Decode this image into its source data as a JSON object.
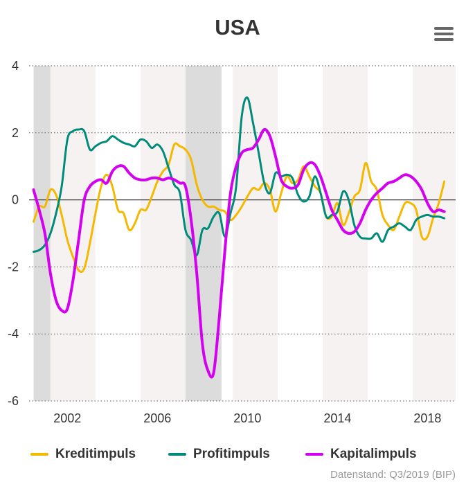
{
  "chart_data": {
    "type": "line",
    "title": "USA",
    "xlabel": "",
    "ylabel": "",
    "xlim": [
      2000.3,
      2019.25
    ],
    "ylim": [
      -6,
      4
    ],
    "y_ticks": [
      4,
      2,
      0,
      -2,
      -4,
      -6
    ],
    "x_ticks": [
      2002,
      2006,
      2010,
      2014,
      2018
    ],
    "grid": "horizontal dotted",
    "legend_position": "bottom",
    "bands": [
      {
        "from": 2000.5,
        "to": 2001.25,
        "color": "#dcdcdc"
      },
      {
        "from": 2001.25,
        "to": 2003.25,
        "color": "#f7f2f2"
      },
      {
        "from": 2005.25,
        "to": 2007.25,
        "color": "#f7f2f2"
      },
      {
        "from": 2007.25,
        "to": 2008.85,
        "color": "#dcdcdc"
      },
      {
        "from": 2009.35,
        "to": 2011.35,
        "color": "#f7f2f2"
      },
      {
        "from": 2013.35,
        "to": 2015.35,
        "color": "#f7f2f2"
      },
      {
        "from": 2017.35,
        "to": 2019.25,
        "color": "#f7f2f2"
      }
    ],
    "series": [
      {
        "name": "Kreditimpuls",
        "color": "#f5b800",
        "points": [
          [
            2000.5,
            -0.65
          ],
          [
            2000.75,
            -0.2
          ],
          [
            2001.0,
            -0.2
          ],
          [
            2001.25,
            0.3
          ],
          [
            2001.5,
            0.15
          ],
          [
            2001.75,
            -0.45
          ],
          [
            2002.0,
            -1.2
          ],
          [
            2002.25,
            -1.7
          ],
          [
            2002.5,
            -2.1
          ],
          [
            2002.75,
            -2.05
          ],
          [
            2003.0,
            -1.3
          ],
          [
            2003.25,
            -0.4
          ],
          [
            2003.5,
            0.4
          ],
          [
            2003.75,
            0.75
          ],
          [
            2004.0,
            0.4
          ],
          [
            2004.25,
            -0.3
          ],
          [
            2004.5,
            -0.4
          ],
          [
            2004.75,
            -0.9
          ],
          [
            2005.0,
            -0.7
          ],
          [
            2005.25,
            -0.3
          ],
          [
            2005.5,
            -0.3
          ],
          [
            2005.75,
            0.1
          ],
          [
            2006.0,
            0.55
          ],
          [
            2006.25,
            0.85
          ],
          [
            2006.5,
            1.05
          ],
          [
            2006.75,
            1.65
          ],
          [
            2007.0,
            1.6
          ],
          [
            2007.25,
            1.5
          ],
          [
            2007.5,
            1.2
          ],
          [
            2007.75,
            0.45
          ],
          [
            2008.0,
            0.0
          ],
          [
            2008.25,
            -0.2
          ],
          [
            2008.5,
            -0.2
          ],
          [
            2008.75,
            -0.3
          ],
          [
            2009.0,
            -0.35
          ],
          [
            2009.25,
            -0.6
          ],
          [
            2009.5,
            -0.45
          ],
          [
            2009.75,
            -0.2
          ],
          [
            2010.0,
            0.1
          ],
          [
            2010.25,
            0.35
          ],
          [
            2010.5,
            0.3
          ],
          [
            2010.75,
            0.5
          ],
          [
            2011.0,
            0.3
          ],
          [
            2011.25,
            -0.35
          ],
          [
            2011.5,
            0.2
          ],
          [
            2011.75,
            0.7
          ],
          [
            2012.0,
            0.5
          ],
          [
            2012.25,
            0.6
          ],
          [
            2012.5,
            1.0
          ],
          [
            2012.75,
            0.7
          ],
          [
            2013.0,
            0.4
          ],
          [
            2013.25,
            0.2
          ],
          [
            2013.5,
            -0.5
          ],
          [
            2013.75,
            -0.5
          ],
          [
            2014.0,
            -0.1
          ],
          [
            2014.25,
            -0.75
          ],
          [
            2014.5,
            -0.4
          ],
          [
            2014.75,
            0.1
          ],
          [
            2015.0,
            0.3
          ],
          [
            2015.25,
            1.1
          ],
          [
            2015.5,
            0.55
          ],
          [
            2015.75,
            0.3
          ],
          [
            2016.0,
            -0.45
          ],
          [
            2016.25,
            -0.75
          ],
          [
            2016.5,
            -0.9
          ],
          [
            2016.75,
            -0.5
          ],
          [
            2017.0,
            -0.1
          ],
          [
            2017.25,
            -0.1
          ],
          [
            2017.5,
            -0.3
          ],
          [
            2017.75,
            -1.1
          ],
          [
            2018.0,
            -1.1
          ],
          [
            2018.25,
            -0.55
          ],
          [
            2018.5,
            -0.1
          ],
          [
            2018.75,
            0.55
          ]
        ]
      },
      {
        "name": "Profitimpuls",
        "color": "#008a7a",
        "points": [
          [
            2000.5,
            -1.55
          ],
          [
            2000.75,
            -1.5
          ],
          [
            2001.0,
            -1.35
          ],
          [
            2001.25,
            -1.0
          ],
          [
            2001.5,
            -0.4
          ],
          [
            2001.75,
            0.4
          ],
          [
            2002.0,
            1.8
          ],
          [
            2002.25,
            2.05
          ],
          [
            2002.5,
            2.1
          ],
          [
            2002.75,
            2.05
          ],
          [
            2003.0,
            1.5
          ],
          [
            2003.25,
            1.6
          ],
          [
            2003.5,
            1.7
          ],
          [
            2003.75,
            1.75
          ],
          [
            2004.0,
            1.9
          ],
          [
            2004.25,
            1.8
          ],
          [
            2004.5,
            1.7
          ],
          [
            2004.75,
            1.65
          ],
          [
            2005.0,
            1.6
          ],
          [
            2005.25,
            1.8
          ],
          [
            2005.5,
            1.75
          ],
          [
            2005.75,
            1.55
          ],
          [
            2006.0,
            1.65
          ],
          [
            2006.25,
            1.45
          ],
          [
            2006.5,
            0.95
          ],
          [
            2006.75,
            0.45
          ],
          [
            2007.0,
            0.2
          ],
          [
            2007.25,
            -0.9
          ],
          [
            2007.5,
            -1.2
          ],
          [
            2007.75,
            -1.65
          ],
          [
            2008.0,
            -0.9
          ],
          [
            2008.25,
            -0.85
          ],
          [
            2008.5,
            -0.5
          ],
          [
            2008.75,
            -0.4
          ],
          [
            2009.0,
            -1.1
          ],
          [
            2009.25,
            -0.4
          ],
          [
            2009.5,
            0.4
          ],
          [
            2009.75,
            2.5
          ],
          [
            2010.0,
            3.05
          ],
          [
            2010.25,
            2.3
          ],
          [
            2010.5,
            1.4
          ],
          [
            2010.75,
            0.5
          ],
          [
            2011.0,
            0.2
          ],
          [
            2011.25,
            0.8
          ],
          [
            2011.5,
            0.7
          ],
          [
            2011.75,
            0.75
          ],
          [
            2012.0,
            0.65
          ],
          [
            2012.25,
            0.15
          ],
          [
            2012.5,
            -0.05
          ],
          [
            2012.75,
            0.1
          ],
          [
            2013.0,
            0.7
          ],
          [
            2013.25,
            0.2
          ],
          [
            2013.5,
            -0.5
          ],
          [
            2013.75,
            -0.45
          ],
          [
            2014.0,
            -0.35
          ],
          [
            2014.25,
            0.25
          ],
          [
            2014.5,
            0.0
          ],
          [
            2014.75,
            -0.75
          ],
          [
            2015.0,
            -1.1
          ],
          [
            2015.25,
            -1.15
          ],
          [
            2015.5,
            -1.15
          ],
          [
            2015.75,
            -1.0
          ],
          [
            2016.0,
            -1.25
          ],
          [
            2016.25,
            -0.9
          ],
          [
            2016.5,
            -0.8
          ],
          [
            2016.75,
            -0.7
          ],
          [
            2017.0,
            -0.8
          ],
          [
            2017.25,
            -0.9
          ],
          [
            2017.5,
            -0.6
          ],
          [
            2017.75,
            -0.5
          ],
          [
            2018.0,
            -0.45
          ],
          [
            2018.25,
            -0.5
          ],
          [
            2018.5,
            -0.5
          ],
          [
            2018.75,
            -0.55
          ]
        ]
      },
      {
        "name": "Kapitalimpuls",
        "color": "#d400f0",
        "points": [
          [
            2000.5,
            0.3
          ],
          [
            2000.75,
            -0.3
          ],
          [
            2001.0,
            -1.0
          ],
          [
            2001.25,
            -2.2
          ],
          [
            2001.5,
            -3.0
          ],
          [
            2001.75,
            -3.3
          ],
          [
            2002.0,
            -3.25
          ],
          [
            2002.25,
            -2.4
          ],
          [
            2002.5,
            -1.2
          ],
          [
            2002.75,
            0.0
          ],
          [
            2003.0,
            0.4
          ],
          [
            2003.25,
            0.55
          ],
          [
            2003.5,
            0.6
          ],
          [
            2003.75,
            0.5
          ],
          [
            2004.0,
            0.85
          ],
          [
            2004.25,
            1.0
          ],
          [
            2004.5,
            1.0
          ],
          [
            2004.75,
            0.8
          ],
          [
            2005.0,
            0.65
          ],
          [
            2005.25,
            0.6
          ],
          [
            2005.5,
            0.6
          ],
          [
            2005.75,
            0.65
          ],
          [
            2006.0,
            0.65
          ],
          [
            2006.25,
            0.6
          ],
          [
            2006.5,
            0.65
          ],
          [
            2006.75,
            0.6
          ],
          [
            2007.0,
            0.5
          ],
          [
            2007.25,
            0.4
          ],
          [
            2007.5,
            -0.6
          ],
          [
            2007.75,
            -2.2
          ],
          [
            2008.0,
            -4.3
          ],
          [
            2008.25,
            -5.1
          ],
          [
            2008.5,
            -5.15
          ],
          [
            2008.75,
            -3.5
          ],
          [
            2009.0,
            -1.5
          ],
          [
            2009.25,
            0.2
          ],
          [
            2009.5,
            1.0
          ],
          [
            2009.75,
            1.4
          ],
          [
            2010.0,
            1.5
          ],
          [
            2010.25,
            1.55
          ],
          [
            2010.5,
            1.8
          ],
          [
            2010.75,
            2.1
          ],
          [
            2011.0,
            1.9
          ],
          [
            2011.25,
            1.3
          ],
          [
            2011.5,
            0.6
          ],
          [
            2011.75,
            0.4
          ],
          [
            2012.0,
            0.35
          ],
          [
            2012.25,
            0.45
          ],
          [
            2012.5,
            0.9
          ],
          [
            2012.75,
            1.1
          ],
          [
            2013.0,
            1.05
          ],
          [
            2013.25,
            0.7
          ],
          [
            2013.5,
            0.2
          ],
          [
            2013.75,
            -0.3
          ],
          [
            2014.0,
            -0.6
          ],
          [
            2014.25,
            -0.9
          ],
          [
            2014.5,
            -1.0
          ],
          [
            2014.75,
            -0.95
          ],
          [
            2015.0,
            -0.7
          ],
          [
            2015.25,
            -0.3
          ],
          [
            2015.5,
            0.0
          ],
          [
            2015.75,
            0.2
          ],
          [
            2016.0,
            0.35
          ],
          [
            2016.25,
            0.5
          ],
          [
            2016.5,
            0.55
          ],
          [
            2016.75,
            0.65
          ],
          [
            2017.0,
            0.75
          ],
          [
            2017.25,
            0.7
          ],
          [
            2017.5,
            0.55
          ],
          [
            2017.75,
            0.3
          ],
          [
            2018.0,
            -0.1
          ],
          [
            2018.25,
            -0.35
          ],
          [
            2018.5,
            -0.3
          ],
          [
            2018.75,
            -0.35
          ]
        ]
      }
    ]
  },
  "menu": {
    "icon": "hamburger-menu-icon"
  },
  "source_note": "Datenstand: Q3/2019 (BIP)"
}
